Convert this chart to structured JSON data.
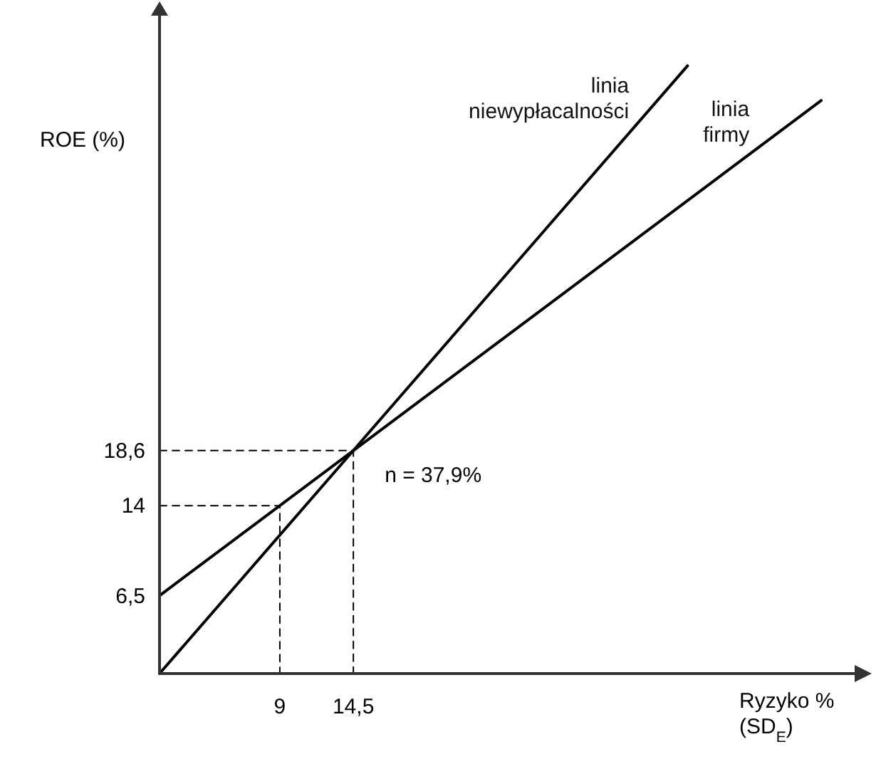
{
  "chart_data": {
    "type": "line",
    "xlabel": "Ryzyko % (SD$_{E}$)",
    "ylabel": "ROE (%)",
    "xlim": [
      0,
      52
    ],
    "ylim": [
      0,
      55
    ],
    "xticks": [
      9,
      {
        "value": 14.5,
        "label": "14,5"
      }
    ],
    "yticks": [
      {
        "value": 6.5,
        "label": "6,5"
      },
      14,
      {
        "value": 18.6,
        "label": "18,6"
      }
    ],
    "series": [
      {
        "name": "linia niewypłacalności",
        "color": "#000000",
        "x": [
          0,
          39.5
        ],
        "values": [
          0,
          50.7
        ],
        "line_style": "solid"
      },
      {
        "name": "linia firmy",
        "color": "#000000",
        "x": [
          0,
          49.5
        ],
        "values": [
          6.5,
          47.8
        ],
        "line_style": "solid"
      },
      {
        "color": "#000000",
        "x": [
          0,
          14.5,
          14.5
        ],
        "values": [
          18.6,
          18.6,
          0
        ],
        "line_style": "dashed"
      },
      {
        "color": "#000000",
        "x": [
          0,
          9,
          9
        ],
        "values": [
          14,
          14,
          0
        ],
        "line_style": "dashed"
      }
    ],
    "annotations": [
      {
        "text": "n = 37,9%",
        "x": 14.5,
        "y": 18.6
      }
    ]
  }
}
